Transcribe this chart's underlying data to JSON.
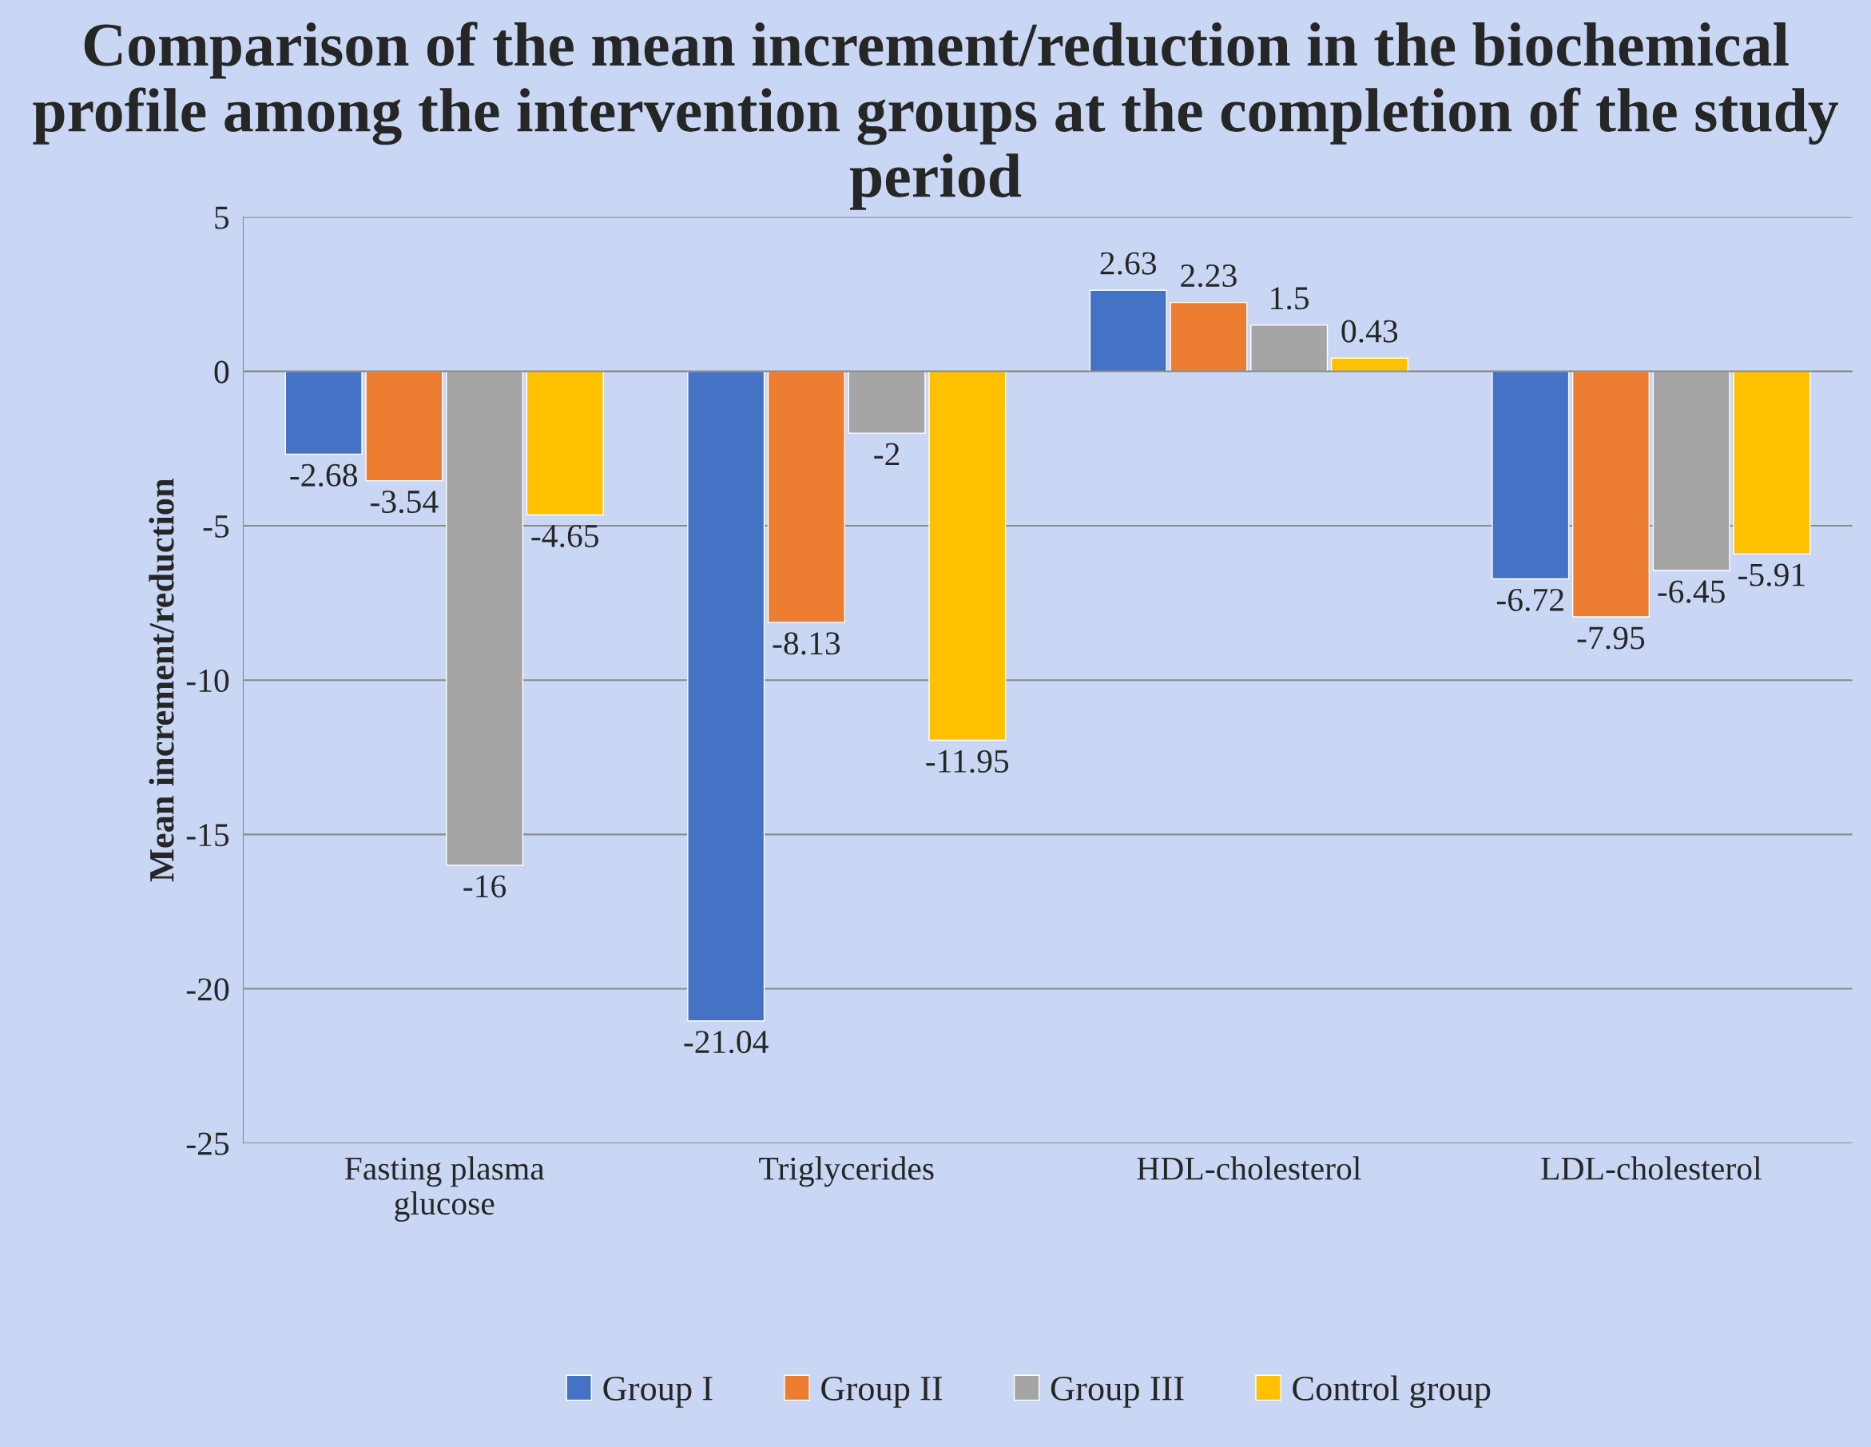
{
  "chart_data": {
    "type": "bar",
    "title": "Comparison of the mean increment/reduction in the biochemical profile among the intervention groups at the completion of the study period",
    "ylabel": "Mean increment/reduction",
    "categories": [
      "Fasting plasma\nglucose",
      "Triglycerides",
      "HDL-cholesterol",
      "LDL-cholesterol"
    ],
    "series": [
      {
        "name": "Group I",
        "color": "#4472c4",
        "values": [
          -2.68,
          -21.04,
          2.63,
          -6.72
        ]
      },
      {
        "name": "Group II",
        "color": "#ed7d31",
        "values": [
          -3.54,
          -8.13,
          2.23,
          -7.95
        ]
      },
      {
        "name": "Group III",
        "color": "#a5a5a5",
        "values": [
          -16,
          -2,
          1.5,
          -6.45
        ]
      },
      {
        "name": "Control group",
        "color": "#ffc000",
        "values": [
          -4.65,
          -11.95,
          0.43,
          -5.91
        ]
      }
    ],
    "ylim": [
      -25,
      5
    ],
    "yticks": [
      -25,
      -20,
      -15,
      -10,
      -5,
      0,
      5
    ],
    "grid": "y",
    "legend": "bottom",
    "data_labels": true
  }
}
